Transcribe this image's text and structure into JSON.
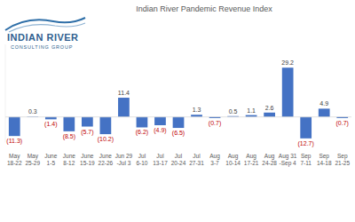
{
  "logo": {
    "name": "INDIAN RIVER",
    "subtitle": "CONSULTING GROUP"
  },
  "chart_data": {
    "type": "bar",
    "title": "Indian River Pandemic Revenue Index",
    "categories": [
      "May 18-22",
      "May 25-29",
      "June 1-5",
      "June 8-12",
      "June 15-19",
      "June 22-26",
      "Jun 29 -Jul 3",
      "Jul 6-10",
      "Jul 13-17",
      "Jul 20-24",
      "Jul 27-31",
      "Aug 3-7",
      "Aug 10-14",
      "Aug 17-21",
      "Aug 24-28",
      "Aug 31 -Sep 4",
      "Sep 7-11",
      "Sep 14-18",
      "Sep 21-25"
    ],
    "values": [
      -11.3,
      0.3,
      -1.4,
      -8.5,
      -5.7,
      -10.2,
      11.4,
      -6.2,
      -4.9,
      -6.5,
      1.3,
      -0.7,
      0.5,
      1.1,
      2.6,
      29.2,
      -12.7,
      4.9,
      -0.7
    ],
    "value_labels": [
      "(11.3)",
      "0.3",
      "(1.4)",
      "(8.5)",
      "(5.7)",
      "(10.2)",
      "11.4",
      "(6.2)",
      "(4.9)",
      "(6.5)",
      "1.3",
      "(0.7)",
      "0.5",
      "1.1",
      "2.6",
      "29.2",
      "(12.7)",
      "4.9",
      "(0.7)"
    ],
    "color": "#4472c4",
    "ylim": [
      -15,
      43
    ],
    "data_labels": true,
    "tick_labels": "x",
    "grid": false
  }
}
